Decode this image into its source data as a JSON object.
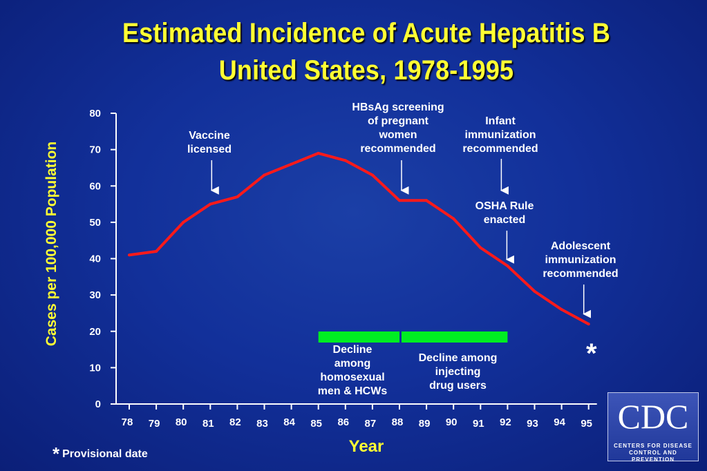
{
  "title_line1": "Estimated Incidence of Acute Hepatitis B",
  "title_line2": "United States, 1978-1995",
  "chart_data": {
    "type": "line",
    "ylabel": "Cases per 100,000 Population",
    "xlabel": "Year",
    "ylim": [
      0,
      80
    ],
    "yticks": [
      0,
      10,
      20,
      30,
      40,
      50,
      60,
      70,
      80
    ],
    "categories": [
      "78",
      "79",
      "80",
      "81",
      "82",
      "83",
      "84",
      "85",
      "86",
      "87",
      "88",
      "89",
      "90",
      "91",
      "92",
      "93",
      "94",
      "95"
    ],
    "values": [
      41,
      42,
      50,
      55,
      57,
      63,
      66,
      69,
      67,
      63,
      56,
      56,
      51,
      43,
      38,
      31,
      26,
      22
    ],
    "line_color": "#ff1a1a",
    "annotations": [
      {
        "id": "vaccine",
        "text": "Vaccine\nlicensed",
        "x": "81",
        "arrow_to": 58
      },
      {
        "id": "hbsag",
        "text": "HBsAg screening\nof pregnant\nwomen\nrecommended",
        "x": "88",
        "arrow_to": 58
      },
      {
        "id": "infant",
        "text": "Infant\nimmunization\nrecommended",
        "x": "92",
        "arrow_to": 58
      },
      {
        "id": "osha",
        "text": "OSHA Rule\nenacted",
        "x": "92",
        "arrow_to": 39
      },
      {
        "id": "adolescent",
        "text": "Adolescent\nimmunization\nrecommended",
        "x": "95",
        "arrow_to": 24
      }
    ],
    "bars": [
      {
        "text": "Decline\namong\nhomosexual\nmen & HCWs",
        "color": "#00ee22"
      },
      {
        "text": "Decline among\ninjecting\ndrug users",
        "color": "#00ee22"
      }
    ],
    "marker": "*"
  },
  "footnote_star": "*",
  "footnote_text": "Provisional date",
  "logo": {
    "text": "CDC",
    "subtitle_line1": "CENTERS FOR DISEASE",
    "subtitle_line2": "CONTROL AND PREVENTION"
  }
}
